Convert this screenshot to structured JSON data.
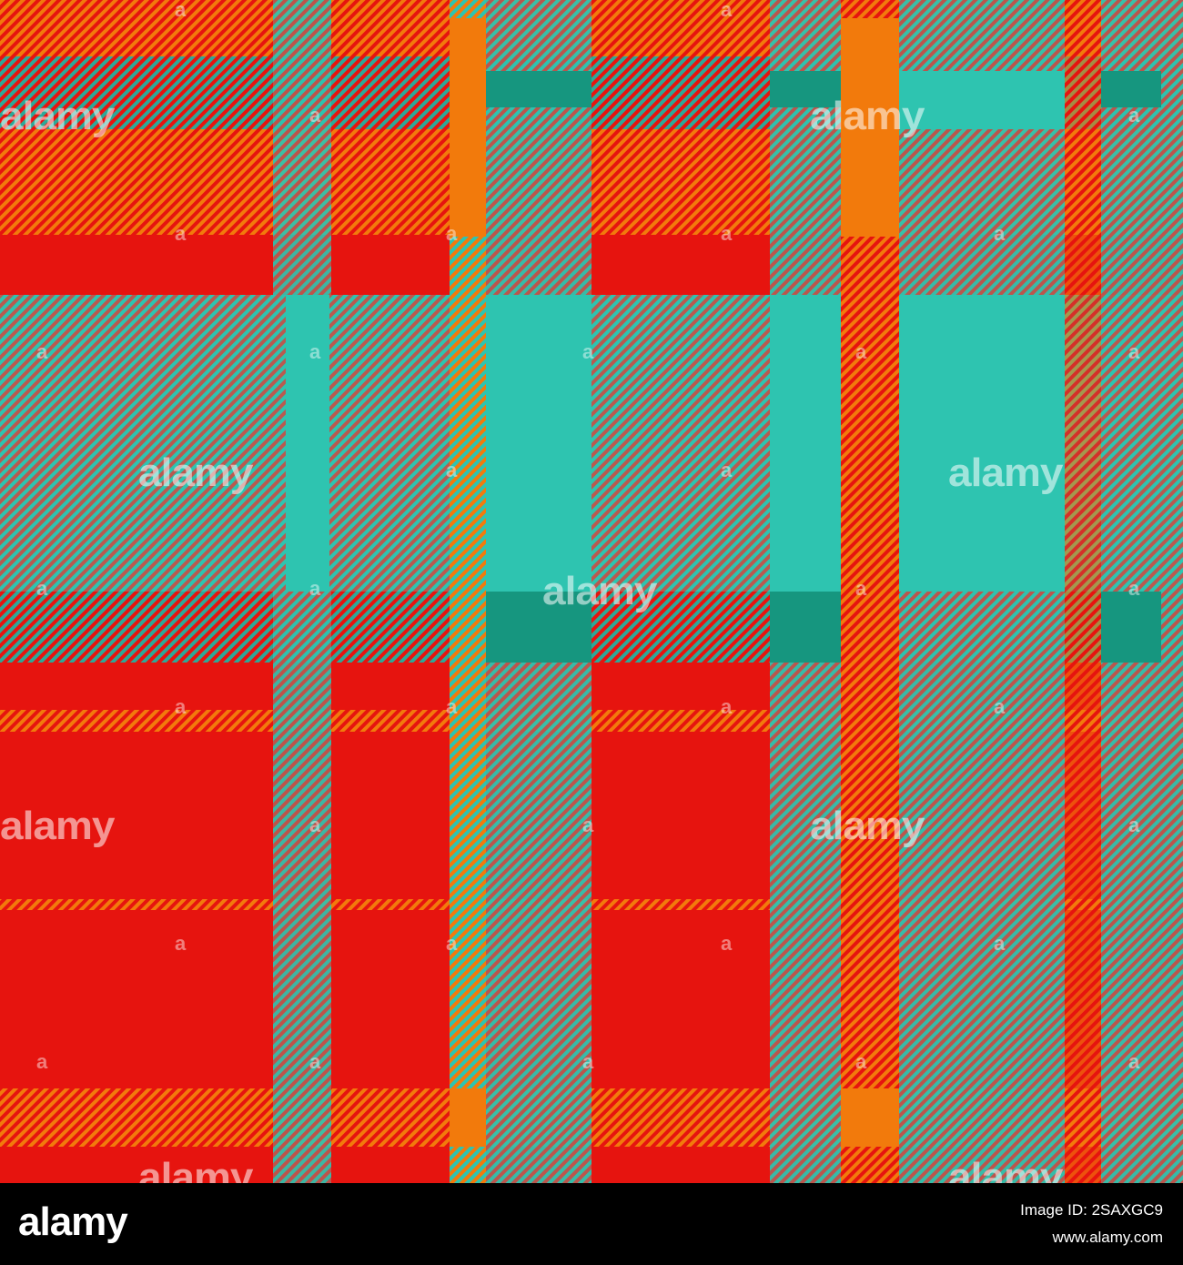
{
  "watermark": {
    "text": "alamy",
    "mark": "a"
  },
  "footer": {
    "brand": "alamy",
    "image_id": "Image ID: 2SAXGC9",
    "url": "www.alamy.com"
  },
  "colors": {
    "red": "#e6140f",
    "orange_red": "#f2501a",
    "orange": "#f27a0c",
    "teal": "#2ec4b0",
    "dark_teal": "#16967f",
    "muted_red": "#b86a5a",
    "footer_bg": "#000000",
    "footer_text": "#ffffff"
  }
}
